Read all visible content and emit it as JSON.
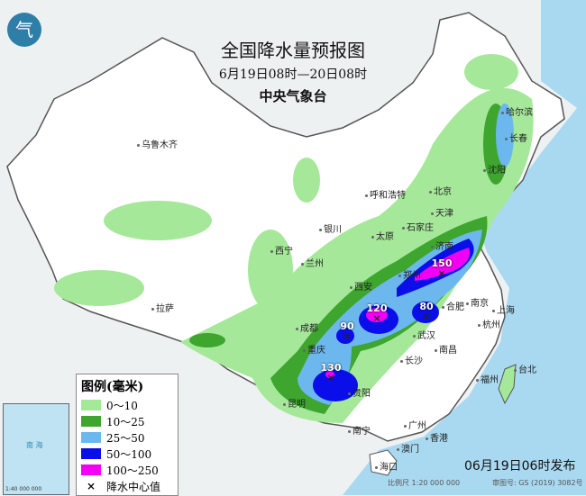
{
  "header": {
    "title": "全国降水量预报图",
    "period": "6月19日08时—20日08时",
    "issuer": "中央气象台",
    "logo_text": "气"
  },
  "legend": {
    "title": "图例(毫米)",
    "items": [
      {
        "label": "0～10",
        "color": "#a6e89a"
      },
      {
        "label": "10～25",
        "color": "#3ea52e"
      },
      {
        "label": "25～50",
        "color": "#6cb8ee"
      },
      {
        "label": "50～100",
        "color": "#0a0ee8"
      },
      {
        "label": "100～250",
        "color": "#f200f2"
      }
    ],
    "center_marker": "×",
    "center_label": "降水中心值"
  },
  "inset": {
    "sea_label": "南 海",
    "scale": "1:40 000 000"
  },
  "footer": {
    "issue_time": "06月19日06时发布",
    "scale": "比例尺 1:20 000 000",
    "review_no": "审图号: GS (2019) 3082号"
  },
  "cities": [
    {
      "name": "乌鲁木齐"
    },
    {
      "name": "哈尔滨"
    },
    {
      "name": "长春"
    },
    {
      "name": "沈阳"
    },
    {
      "name": "呼和浩特"
    },
    {
      "name": "北京"
    },
    {
      "name": "天津"
    },
    {
      "name": "银川"
    },
    {
      "name": "太原"
    },
    {
      "name": "石家庄"
    },
    {
      "name": "济南"
    },
    {
      "name": "西宁"
    },
    {
      "name": "兰州"
    },
    {
      "name": "郑州"
    },
    {
      "name": "西安"
    },
    {
      "name": "拉萨"
    },
    {
      "name": "成都"
    },
    {
      "name": "合肥"
    },
    {
      "name": "南京"
    },
    {
      "name": "上海"
    },
    {
      "name": "武汉"
    },
    {
      "name": "杭州"
    },
    {
      "name": "重庆"
    },
    {
      "name": "长沙"
    },
    {
      "name": "南昌"
    },
    {
      "name": "贵阳"
    },
    {
      "name": "福州"
    },
    {
      "name": "台北"
    },
    {
      "name": "昆明"
    },
    {
      "name": "南宁"
    },
    {
      "name": "广州"
    },
    {
      "name": "香港"
    },
    {
      "name": "澳门"
    },
    {
      "name": "海口"
    }
  ],
  "rain_centers": [
    {
      "value": "150"
    },
    {
      "value": "120"
    },
    {
      "value": "80"
    },
    {
      "value": "90"
    },
    {
      "value": "130"
    }
  ]
}
